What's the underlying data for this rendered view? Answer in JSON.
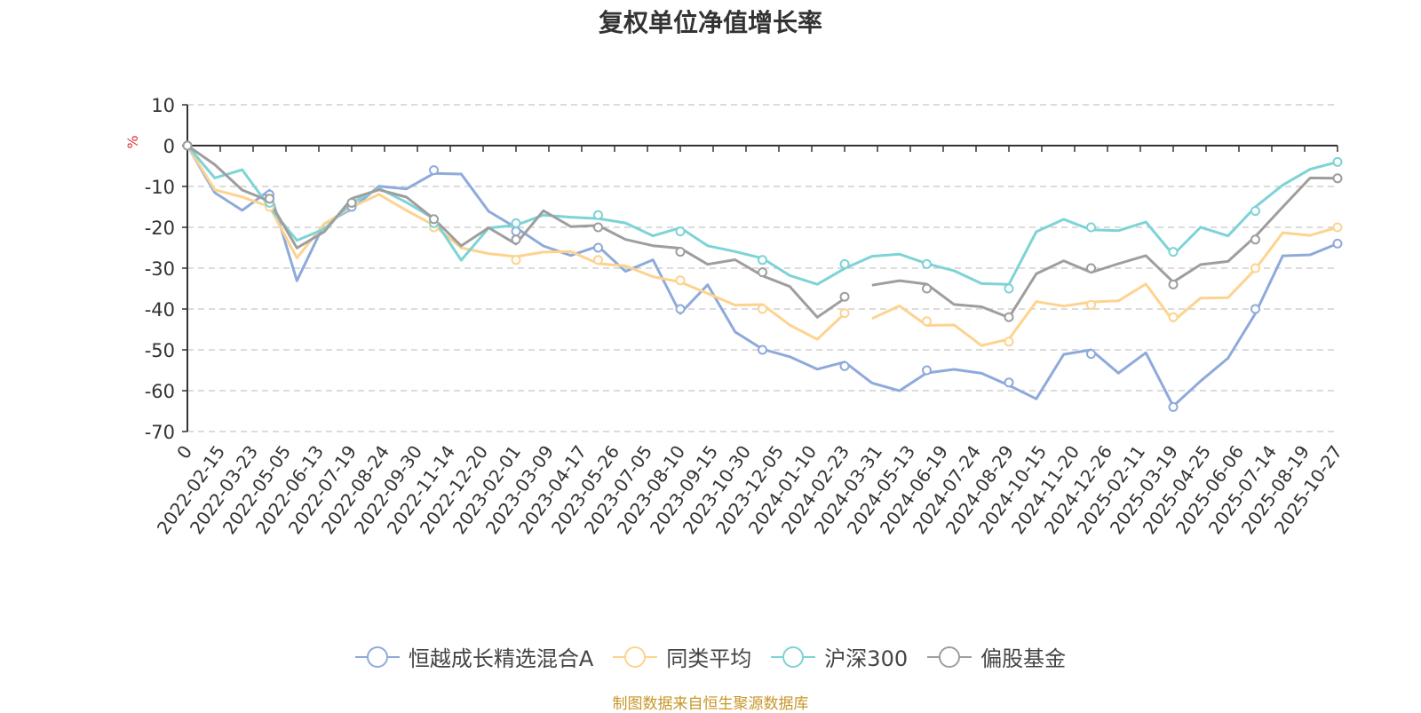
{
  "chart_data": {
    "type": "line",
    "title": "复权单位净值增长率",
    "ylabel": "%",
    "ylim": [
      -70,
      10
    ],
    "y_ticks": [
      10,
      0,
      -10,
      -20,
      -30,
      -40,
      -50,
      -60,
      -70
    ],
    "x_tick_labels": [
      "0",
      "2022-02-15",
      "2022-03-23",
      "2022-05-05",
      "2022-06-13",
      "2022-07-19",
      "2022-08-24",
      "2022-09-30",
      "2022-11-14",
      "2022-12-20",
      "2023-02-01",
      "2023-03-09",
      "2023-04-17",
      "2023-05-26",
      "2023-07-05",
      "2023-08-10",
      "2023-09-15",
      "2023-10-30",
      "2023-12-05",
      "2024-01-10",
      "2024-02-23",
      "2024-03-31",
      "2024-05-13",
      "2024-06-19",
      "2024-07-24",
      "2024-08-29",
      "2024-10-15",
      "2024-11-20",
      "2024-12-26",
      "2025-02-11",
      "2025-03-19",
      "2025-04-25",
      "2025-06-06",
      "2025-07-14",
      "2025-08-19",
      "2025-10-27"
    ],
    "grid": "dashed horizontal",
    "legend_position": "bottom",
    "series": [
      {
        "name": "恒越成长精选混合A",
        "color": "#8eaadb",
        "values": [
          0,
          -12,
          -15,
          -12,
          -32,
          -20,
          -15,
          -10,
          -11,
          -6,
          -8,
          -15,
          -21,
          -24,
          -27,
          -25,
          -30,
          -29,
          -40,
          -35,
          -45,
          -50,
          -52,
          -54,
          -54,
          -57,
          -61,
          -55,
          -55,
          -56,
          -58,
          -63,
          -50,
          -51,
          -55,
          -51,
          -64,
          -57,
          -53,
          -40,
          -28,
          -26,
          -24
        ]
      },
      {
        "name": "同类平均",
        "color": "#fdd38f",
        "values": [
          0,
          -10,
          -13,
          -15,
          -27,
          -20,
          -14,
          -13,
          -15,
          -20,
          -25,
          -26,
          -28,
          -25,
          -27,
          -28,
          -30,
          -32,
          -33,
          -37,
          -38,
          -40,
          -43,
          -48,
          -41,
          -42,
          -40,
          -43,
          -45,
          -48,
          -48,
          -38,
          -39,
          -39,
          -37,
          -35,
          -42,
          -38,
          -37,
          -30,
          -22,
          -21,
          -20
        ]
      },
      {
        "name": "沪深300",
        "color": "#7dd3d6",
        "values": [
          0,
          -7,
          -7,
          -14,
          -24,
          -20,
          -14,
          -11,
          -13,
          -19,
          -27,
          -21,
          -19,
          -17,
          -18,
          -17,
          -20,
          -21,
          -21,
          -24,
          -26,
          -28,
          -31,
          -35,
          -29,
          -28,
          -26,
          -29,
          -31,
          -33,
          -35,
          -20,
          -19,
          -20,
          -21,
          -19,
          -26,
          -21,
          -21,
          -16,
          -9,
          -6,
          -4
        ]
      },
      {
        "name": "偏股基金",
        "color": "#9e9e9e",
        "values": [
          0,
          -5,
          -11,
          -13,
          -26,
          -20,
          -14,
          -10,
          -13,
          -18,
          -24,
          -21,
          -23,
          -17,
          -19,
          -20,
          -23,
          -24,
          -26,
          -28,
          -29,
          -31,
          -35,
          -42,
          -37,
          -35,
          -32,
          -35,
          -38,
          -40,
          -42,
          -31,
          -29,
          -30,
          -30,
          -26,
          -34,
          -29,
          -28,
          -23,
          -14,
          -9,
          -8
        ]
      }
    ],
    "breaks": [
      {
        "series": [
          "同类平均",
          "偏股基金"
        ],
        "after_index": 24
      }
    ]
  },
  "legend": [
    {
      "label": "恒越成长精选混合A"
    },
    {
      "label": "同类平均"
    },
    {
      "label": "沪深300"
    },
    {
      "label": "偏股基金"
    }
  ],
  "source_text": "制图数据来自恒生聚源数据库"
}
